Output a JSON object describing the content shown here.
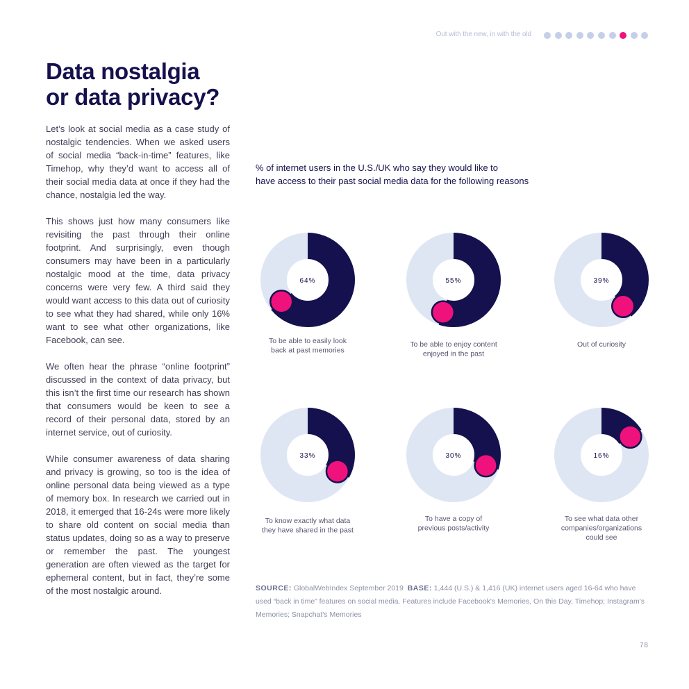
{
  "header": {
    "section_title": "Out with the new, in with the old",
    "dot_count": 10,
    "active_dot_index": 7,
    "dot_color": "#c5cfe8",
    "active_dot_color": "#f0127c"
  },
  "article": {
    "title_line1": "Data nostalgia",
    "title_line2": "or data privacy?",
    "paragraphs": [
      "Let’s look at social media as a case study of nostalgic tendencies. When we asked users of social media “back-in-time” features, like Timehop, why they’d want to access all of their social media data at once if they had the chance, nostalgia led the way.",
      "This shows just how many consumers like revisiting the past through their online footprint. And surprisingly, even though consumers may have been in a particularly nostalgic mood at the time, data privacy concerns were very few. A third said they would want access to this data out of curiosity to see what they had shared, while only 16% want to see what other organizations, like Facebook, can see.",
      "We often hear the phrase “online footprint” discussed in the context of data privacy, but this isn’t the first time our research has shown that consumers would be keen to see a record of their personal data, stored by an internet service, out of curiosity.",
      "While consumer awareness of data sharing and privacy is growing, so too is the idea of online personal data being viewed as a type of memory box. In research we carried out in 2018, it emerged that 16-24s were more likely to share old content on social media than status updates, doing so as a way to preserve or remember the past. The youngest generation are often viewed as the target for ephemeral content, but in fact, they’re some of the most nostalgic around."
    ]
  },
  "chart_data": {
    "type": "pie",
    "title": "% of internet users in the U.S./UK who say they would like to have access to their past social media data for the following reasons",
    "title_line1": "% of internet users in the U.S./UK who say they would like to",
    "title_line2": "have access to their past social media data for the following reasons",
    "unit": "%",
    "colors": {
      "value": "#15114e",
      "remainder": "#dfe6f3",
      "marker": "#f0127c"
    },
    "series": [
      {
        "name": "To be able to easily look back at past memories",
        "label_lines": [
          "To be able to easily look",
          "back at past memories"
        ],
        "value": 64,
        "value_label": "64%"
      },
      {
        "name": "To be able to enjoy content enjoyed in the past",
        "label_lines": [
          "To be able to enjoy content",
          "enjoyed in the past"
        ],
        "value": 55,
        "value_label": "55%"
      },
      {
        "name": "Out of curiosity",
        "label_lines": [
          "Out of curiosity"
        ],
        "value": 39,
        "value_label": "39%"
      },
      {
        "name": "To know exactly what data they have shared in the past",
        "label_lines": [
          "To know exactly what data",
          "they have shared in the past"
        ],
        "value": 33,
        "value_label": "33%"
      },
      {
        "name": "To have a copy of previous posts/activity",
        "label_lines": [
          "To have a copy of",
          "previous posts/activity"
        ],
        "value": 30,
        "value_label": "30%"
      },
      {
        "name": "To see what data other companies/organizations could see",
        "label_lines": [
          "To see what data other",
          "companies/organizations",
          "could see"
        ],
        "value": 16,
        "value_label": "16%"
      }
    ]
  },
  "source": {
    "source_label": "SOURCE:",
    "source_text": "GlobalWebIndex September 2019",
    "base_label": "BASE:",
    "base_text": "1,444 (U.S.) & 1,416 (UK) internet users aged 16-64 who have used “back in time” features on social media. Features include Facebook's Memories,  On this Day, Timehop; Instagram's Memories; Snapchat's Memories"
  },
  "footer": {
    "page_number": "78"
  }
}
